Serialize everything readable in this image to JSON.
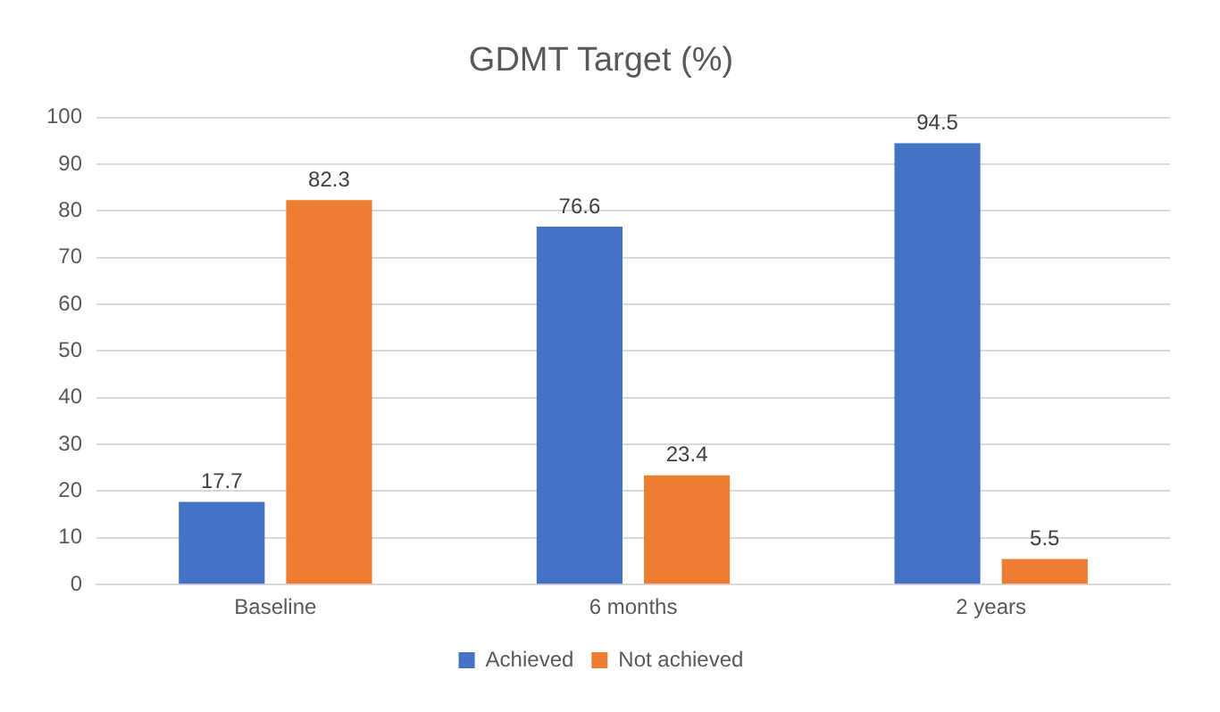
{
  "chart_data": {
    "type": "bar",
    "title": "GDMT Target (%)",
    "categories": [
      "Baseline",
      "6 months",
      "2 years"
    ],
    "series": [
      {
        "name": "Achieved",
        "color": "#4472c4",
        "values": [
          17.7,
          76.6,
          94.5
        ]
      },
      {
        "name": "Not achieved",
        "color": "#ed7d31",
        "values": [
          82.3,
          23.4,
          5.5
        ]
      }
    ],
    "ylim": [
      0,
      100
    ],
    "yticks": [
      0,
      10,
      20,
      30,
      40,
      50,
      60,
      70,
      80,
      90,
      100
    ],
    "grid": "y",
    "legend": "bottom",
    "data_labels": true
  }
}
